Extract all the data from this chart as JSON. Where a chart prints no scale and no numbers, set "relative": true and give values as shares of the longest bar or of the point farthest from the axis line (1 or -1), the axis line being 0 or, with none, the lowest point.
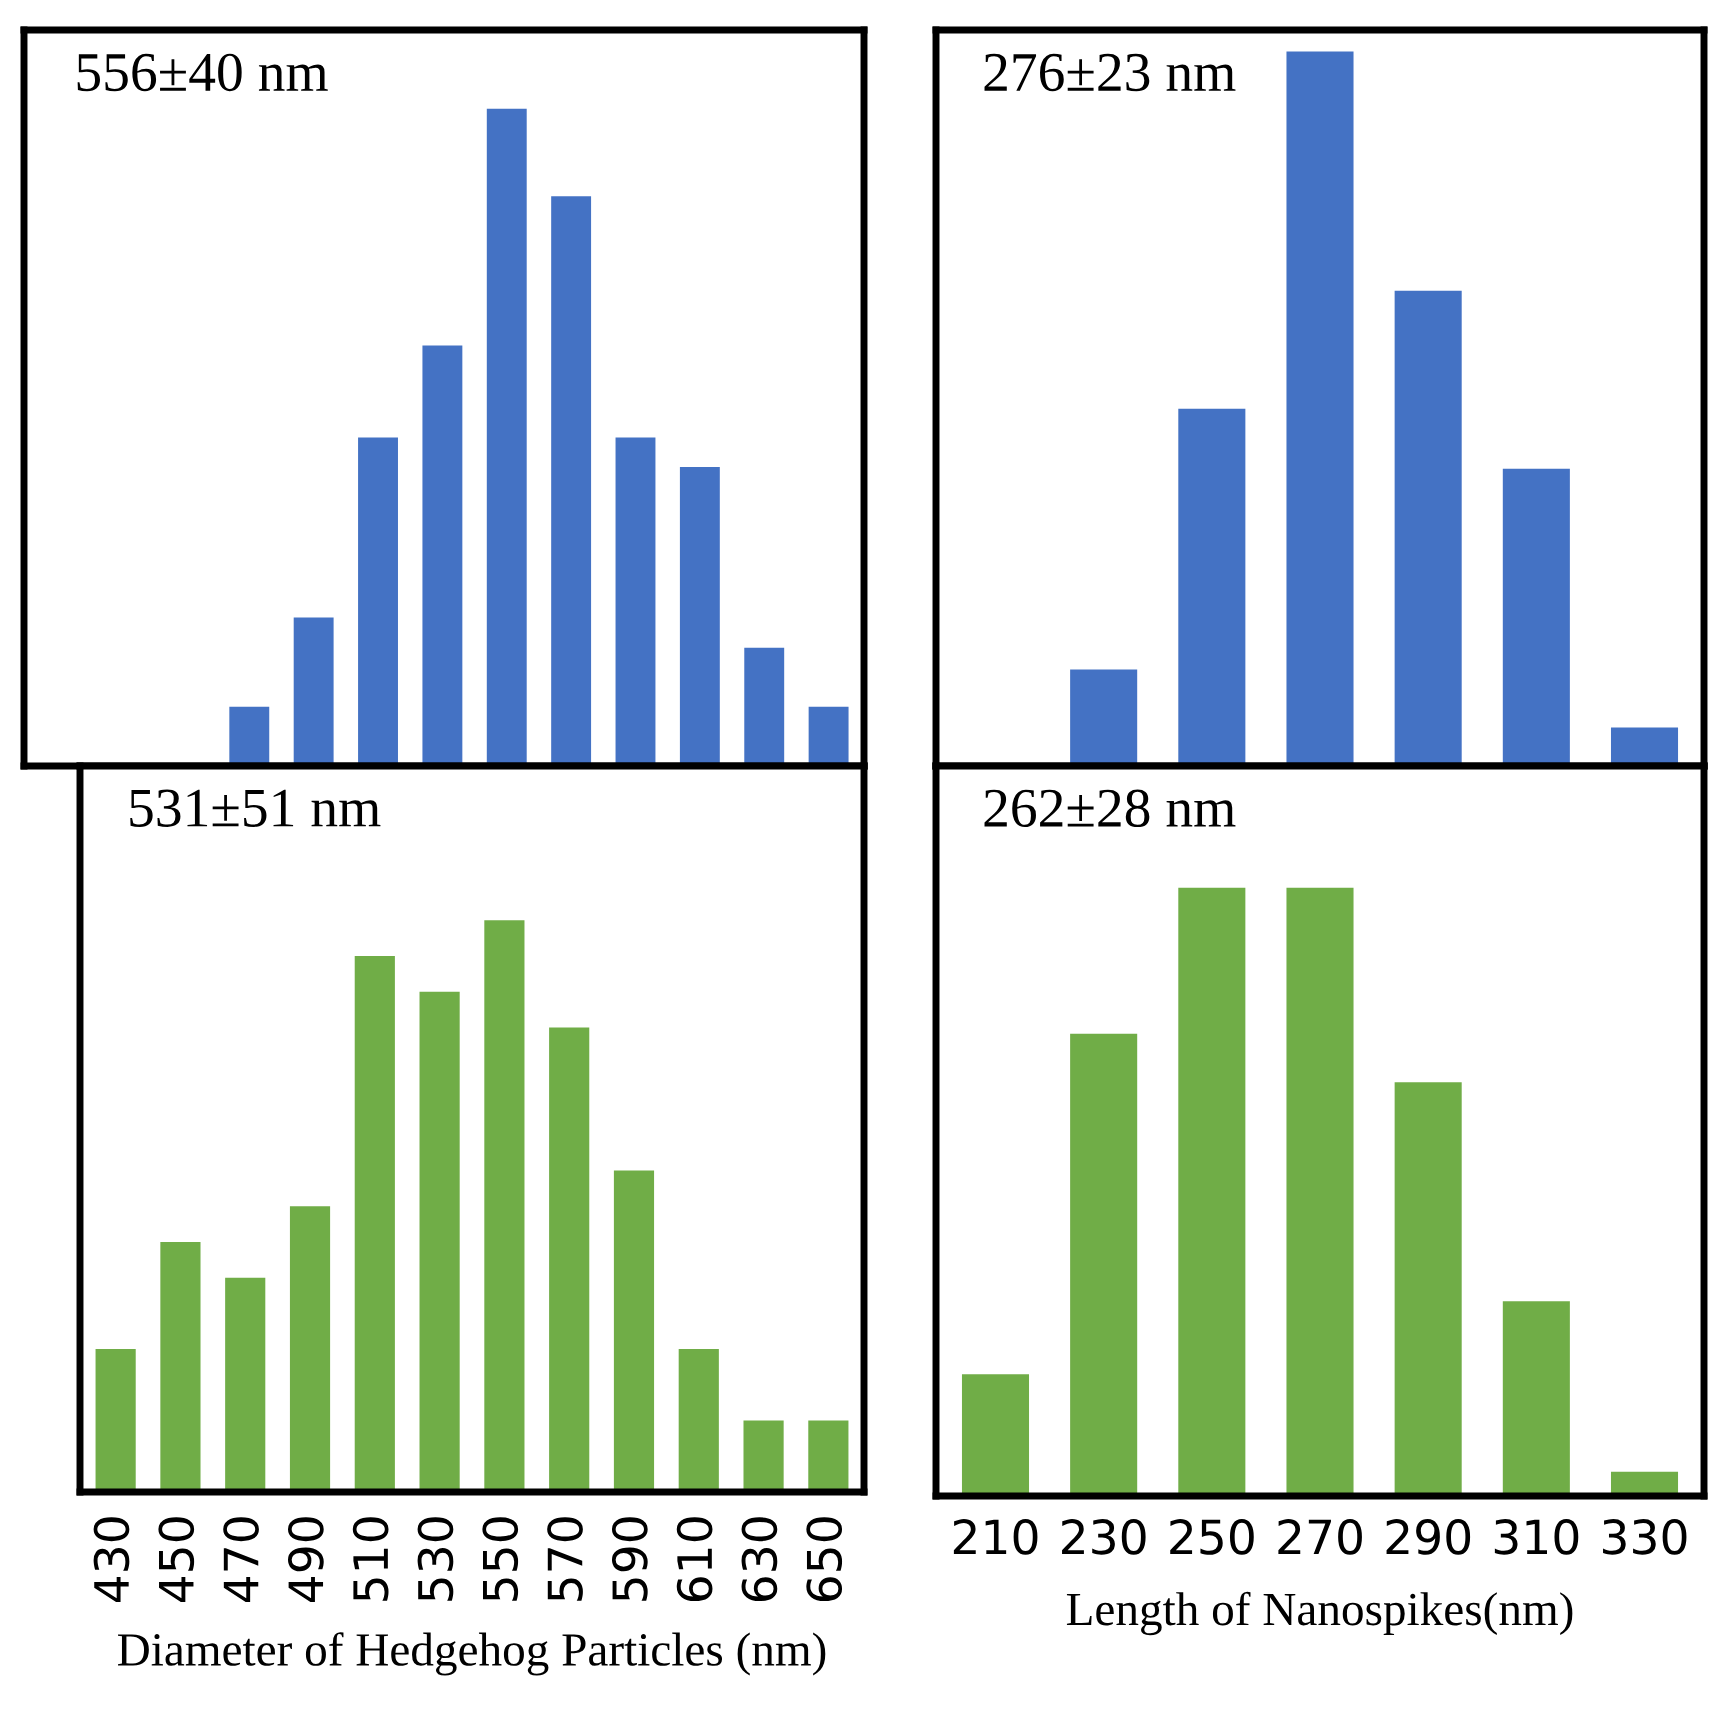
{
  "chart_data": [
    {
      "type": "bar",
      "categories": [
        "430",
        "450",
        "470",
        "490",
        "510",
        "530",
        "550",
        "570",
        "590",
        "610",
        "630",
        "650"
      ],
      "relative": true,
      "tick_labels": false,
      "series": [
        {
          "color": "#4472c4",
          "values": [
            0,
            0,
            0.09,
            0.226,
            0.5,
            0.64,
            1,
            0.867,
            0.5,
            0.455,
            0.18,
            0.09
          ]
        }
      ],
      "annotations": [
        "556±40 nm"
      ]
    },
    {
      "type": "bar",
      "categories": [
        "210",
        "230",
        "250",
        "270",
        "290",
        "310",
        "330"
      ],
      "relative": true,
      "tick_labels": false,
      "series": [
        {
          "color": "#4472c4",
          "values": [
            0,
            0.135,
            0.5,
            1,
            0.665,
            0.416,
            0.054
          ]
        }
      ],
      "annotations": [
        "276±23 nm"
      ]
    },
    {
      "type": "bar",
      "categories": [
        "430",
        "450",
        "470",
        "490",
        "510",
        "530",
        "550",
        "570",
        "590",
        "610",
        "630",
        "650"
      ],
      "relative": true,
      "tick_labels": "x",
      "xlabel": "Diameter of Hedgehog Particles (nm)",
      "series": [
        {
          "color": "#70ad47",
          "values": [
            0.25,
            0.4375,
            0.375,
            0.5,
            0.9375,
            0.875,
            1,
            0.8125,
            0.5625,
            0.25,
            0.125,
            0.125
          ]
        }
      ],
      "annotations": [
        "531±51 nm"
      ]
    },
    {
      "type": "bar",
      "categories": [
        "210",
        "230",
        "250",
        "270",
        "290",
        "310",
        "330"
      ],
      "relative": true,
      "tick_labels": "x",
      "xlabel": "Length of Nanospikes(nm)",
      "series": [
        {
          "color": "#70ad47",
          "values": [
            0.2,
            0.76,
            1,
            1,
            0.68,
            0.32,
            0.04
          ]
        }
      ],
      "annotations": [
        "262±28 nm"
      ]
    }
  ]
}
